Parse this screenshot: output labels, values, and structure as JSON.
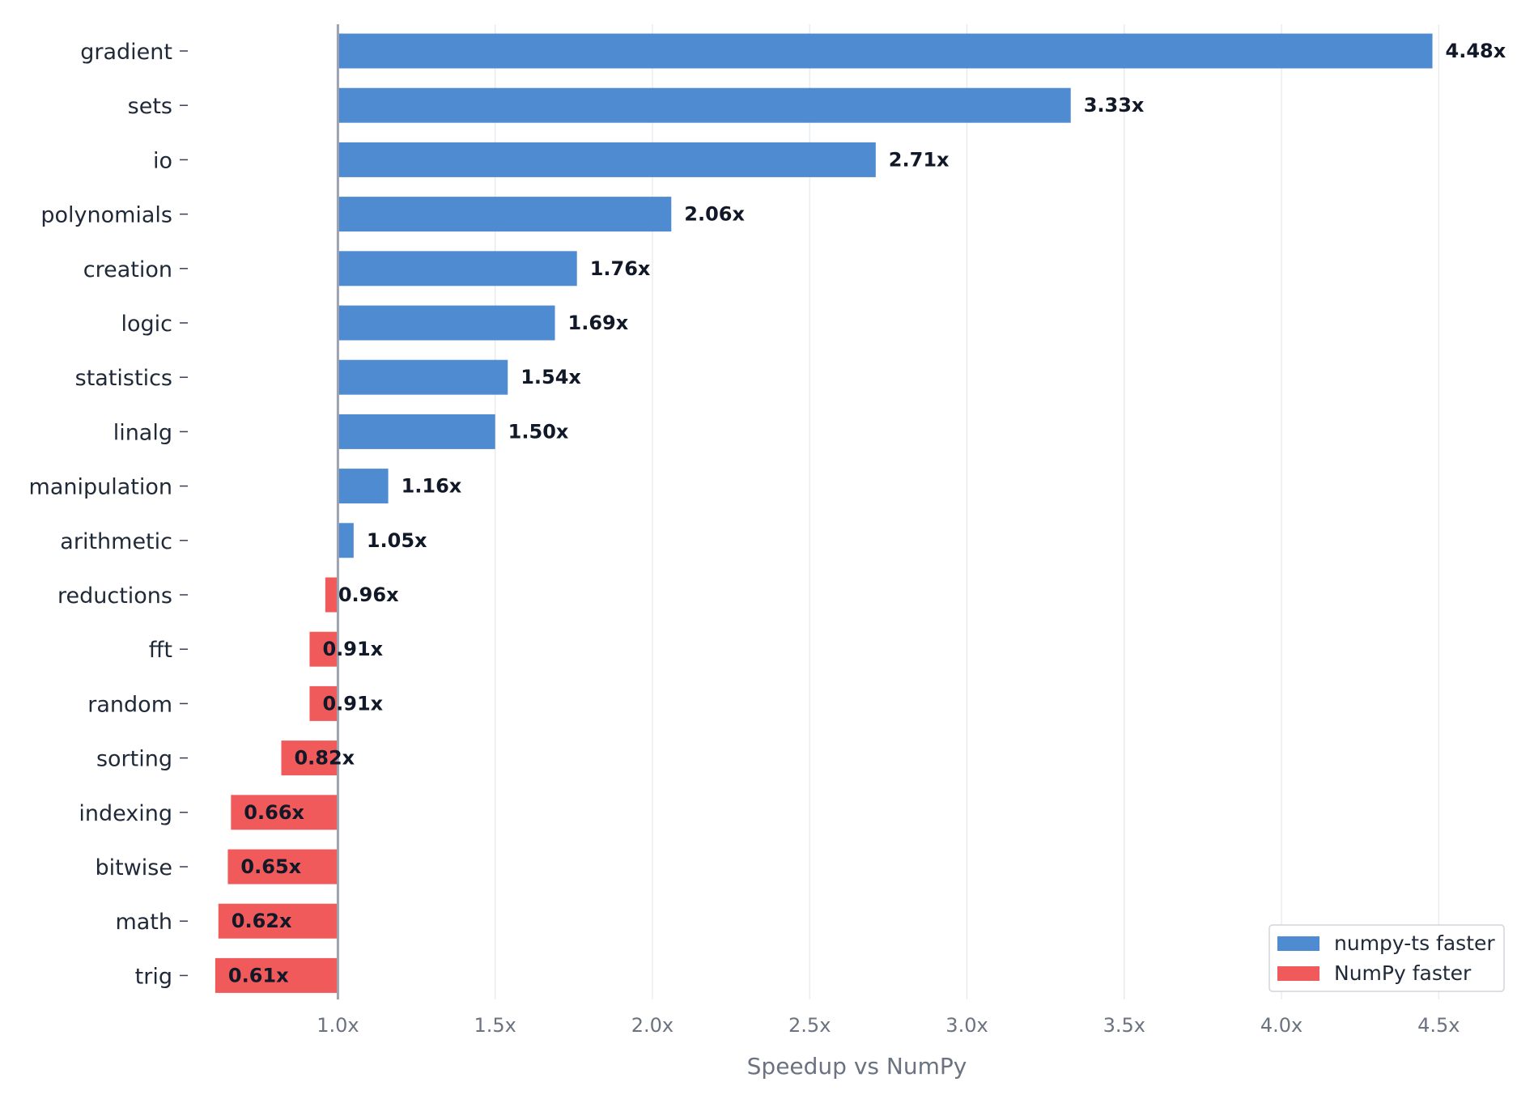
{
  "chart_data": {
    "type": "bar",
    "orientation": "horizontal",
    "categories": [
      "gradient",
      "sets",
      "io",
      "polynomials",
      "creation",
      "logic",
      "statistics",
      "linalg",
      "manipulation",
      "arithmetic",
      "reductions",
      "fft",
      "random",
      "sorting",
      "indexing",
      "bitwise",
      "math",
      "trig"
    ],
    "values": [
      4.48,
      3.33,
      2.71,
      2.06,
      1.76,
      1.69,
      1.54,
      1.5,
      1.16,
      1.05,
      0.96,
      0.91,
      0.91,
      0.82,
      0.66,
      0.65,
      0.62,
      0.61
    ],
    "value_labels": [
      "4.48x",
      "3.33x",
      "2.71x",
      "2.06x",
      "1.76x",
      "1.69x",
      "1.54x",
      "1.50x",
      "1.16x",
      "1.05x",
      "0.96x",
      "0.91x",
      "0.91x",
      "0.82x",
      "0.66x",
      "0.65x",
      "0.62x",
      "0.61x"
    ],
    "baseline": 1.0,
    "xlabel": "Speedup vs NumPy",
    "ylabel": "",
    "title": "",
    "xlim": [
      0.6,
      4.7
    ],
    "xticks": [
      1.0,
      1.5,
      2.0,
      2.5,
      3.0,
      3.5,
      4.0,
      4.5
    ],
    "xtick_labels": [
      "1.0x",
      "1.5x",
      "2.0x",
      "2.5x",
      "3.0x",
      "3.5x",
      "4.0x",
      "4.5x"
    ],
    "grid": "vertical",
    "legend": {
      "placement": "bottom-right",
      "entries": [
        {
          "name": "numpy-ts faster",
          "color": "#4e8bd0"
        },
        {
          "name": "NumPy faster",
          "color": "#f05a5a"
        }
      ]
    },
    "colors": {
      "faster": "#4e8bd0",
      "slower": "#f05a5a",
      "baseline": "#9ca3af",
      "grid": "#e5e7eb"
    }
  }
}
